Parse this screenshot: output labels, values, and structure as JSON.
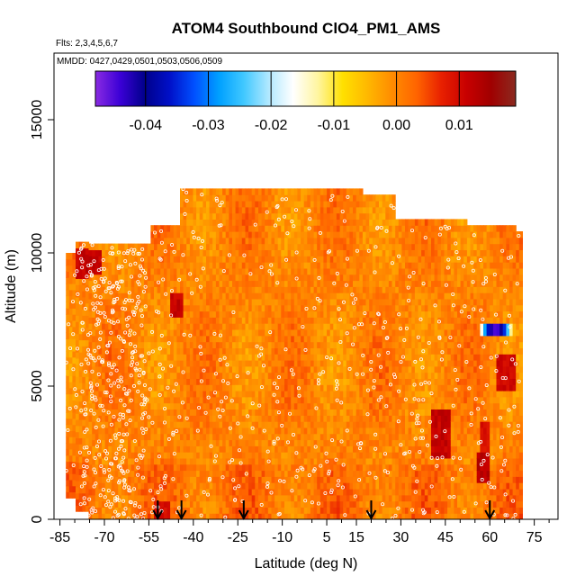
{
  "chart_data": {
    "type": "heatmap",
    "title": "ATOM4 Southbound ClO4_PM1_AMS",
    "flights_label": "Flts: 2,3,4,5,6,7",
    "dates_label": "MMDD: 0427,0429,0501,0503,0506,0509",
    "xlabel": "Latitude (deg N)",
    "ylabel": "Altitude (m)",
    "xlim": [
      -87,
      83
    ],
    "ylim": [
      0,
      17500
    ],
    "x_ticks": [
      -85,
      -70,
      -55,
      -40,
      -25,
      -10,
      5,
      15,
      30,
      45,
      60,
      75
    ],
    "x_tick_labels": [
      "-85",
      "-70",
      "-55",
      "-40",
      "-25",
      "-10",
      "5",
      "15",
      "30",
      "45",
      "60",
      "75"
    ],
    "x_minor_ticks": [
      -80,
      -75,
      -65,
      -60,
      -50,
      -45,
      -35,
      -30,
      -20,
      -15,
      -5,
      0,
      10,
      20,
      25,
      35,
      40,
      50,
      55,
      65,
      70,
      80
    ],
    "y_ticks": [
      0,
      5000,
      10000,
      15000
    ],
    "y_tick_labels": [
      "0",
      "5000",
      "10000",
      "15000"
    ],
    "colorbar": {
      "range": [
        -0.048,
        0.019
      ],
      "ticks": [
        -0.04,
        -0.03,
        -0.02,
        -0.01,
        0.0,
        0.01
      ],
      "tick_labels": [
        "-0.04",
        "-0.03",
        "-0.02",
        "-0.01",
        "0.00",
        "0.01"
      ],
      "colors": [
        "#8a2be2",
        "#3b00d6",
        "#00008b",
        "#0010c8",
        "#0050ff",
        "#00a0ff",
        "#40c8ff",
        "#b0e8ff",
        "#ffffff",
        "#fff5a0",
        "#ffe000",
        "#ffb800",
        "#ff8c00",
        "#ff6400",
        "#e82000",
        "#c80000",
        "#a00000",
        "#8b2a20"
      ]
    },
    "field_value_typical": 0.0,
    "enhanced_patches": [
      {
        "lat": [
          -80,
          -72
        ],
        "alt": [
          9000,
          10000
        ],
        "value": 0.012
      },
      {
        "lat": [
          -48,
          -44
        ],
        "alt": [
          7500,
          8500
        ],
        "value": 0.012
      },
      {
        "lat": [
          40,
          46
        ],
        "alt": [
          2300,
          4000
        ],
        "value": 0.012
      },
      {
        "lat": [
          55,
          59
        ],
        "alt": [
          1200,
          2500
        ],
        "value": 0.013
      },
      {
        "lat": [
          56,
          60
        ],
        "alt": [
          2500,
          3500
        ],
        "value": 0.01
      },
      {
        "lat": [
          62,
          68
        ],
        "alt": [
          4800,
          6000
        ],
        "value": 0.011
      },
      {
        "lat": [
          -54,
          -48
        ],
        "alt": [
          0,
          600
        ],
        "value": 0.01
      }
    ],
    "depleted_patch": {
      "lat": [
        56,
        67
      ],
      "alt": [
        6900,
        7300
      ],
      "value": -0.045
    },
    "arrows_latitude": [
      -52,
      -44,
      -23,
      20,
      60
    ]
  }
}
